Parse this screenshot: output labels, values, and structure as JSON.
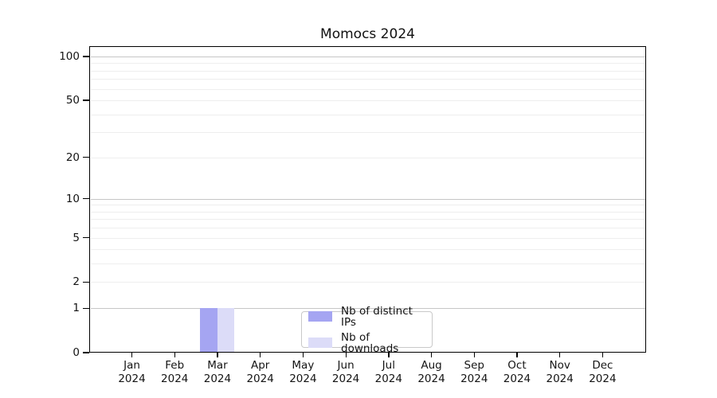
{
  "chart_data": {
    "type": "bar",
    "title": "Momocs 2024",
    "categories": [
      "Jan",
      "Feb",
      "Mar",
      "Apr",
      "May",
      "Jun",
      "Jul",
      "Aug",
      "Sep",
      "Oct",
      "Nov",
      "Dec"
    ],
    "year_label": "2024",
    "series": [
      {
        "name": "Nb of distinct IPs",
        "color": "#a5a5f2",
        "values": [
          0,
          0,
          1,
          0,
          0,
          0,
          0,
          0,
          0,
          0,
          0,
          0
        ]
      },
      {
        "name": "Nb of downloads",
        "color": "#dcdcf8",
        "values": [
          0,
          0,
          1,
          0,
          0,
          0,
          0,
          0,
          0,
          0,
          0,
          0
        ]
      }
    ],
    "y_axis": {
      "scale": "log1p",
      "tick_values": [
        0,
        1,
        2,
        5,
        10,
        20,
        50,
        100
      ],
      "major_gridlines": [
        1,
        10,
        100
      ],
      "minor_gridlines": [
        2,
        3,
        4,
        5,
        6,
        7,
        8,
        9,
        20,
        30,
        40,
        50,
        60,
        70,
        80,
        90
      ],
      "ylim": [
        0,
        116
      ]
    },
    "x_axis": {
      "tick_count": 12
    },
    "legend": {
      "position": "lower center"
    },
    "grid": "on",
    "colors": {
      "axis": "#000000",
      "grid_major": "#c6c6c6",
      "grid_minor": "#eeeeee",
      "legend_border": "#c9c9c9",
      "text": "#141414"
    }
  }
}
